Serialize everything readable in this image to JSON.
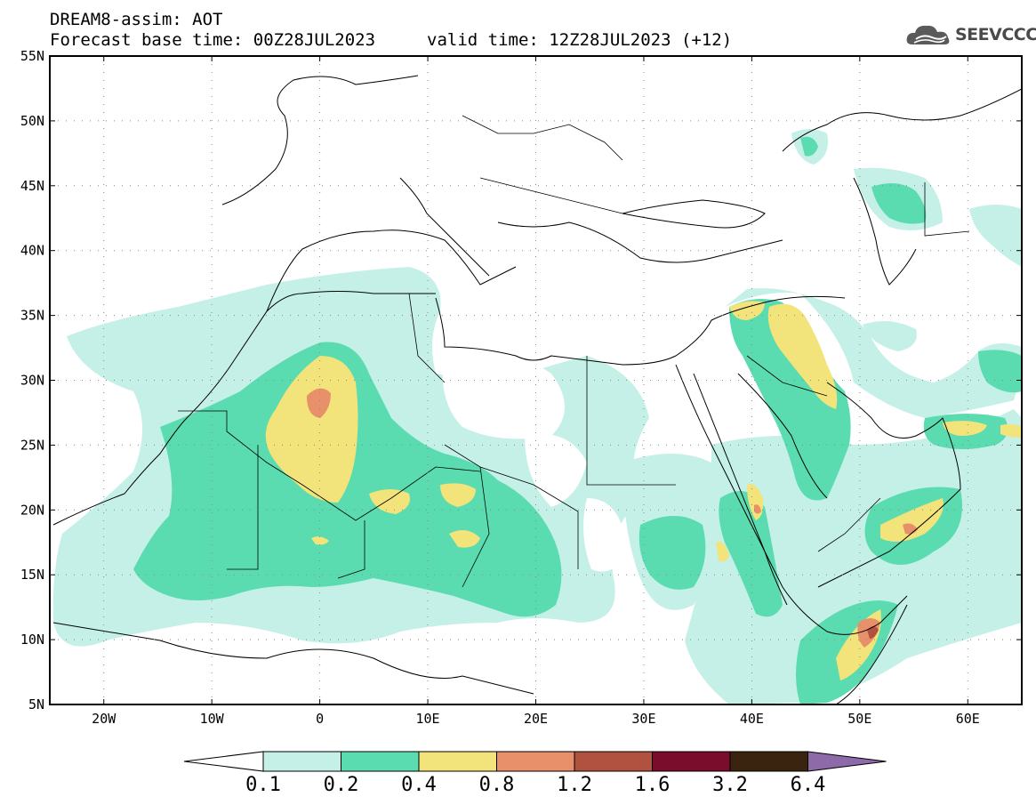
{
  "header": {
    "line1": "DREAM8-assim: AOT",
    "line2": "Forecast base time: 00Z28JUL2023",
    "line3": "valid time: 12Z28JUL2023 (+12)",
    "logo_text": "SEEVCCC",
    "logo_icon": "cloud-icon"
  },
  "map": {
    "lon_range": [
      -25,
      65
    ],
    "lat_range": [
      5,
      55
    ],
    "lat_labels": [
      "55N",
      "50N",
      "45N",
      "40N",
      "35N",
      "30N",
      "25N",
      "20N",
      "15N",
      "10N",
      "5N"
    ],
    "lat_values": [
      55,
      50,
      45,
      40,
      35,
      30,
      25,
      20,
      15,
      10,
      5
    ],
    "lon_labels": [
      "20W",
      "10W",
      "0",
      "10E",
      "20E",
      "30E",
      "40E",
      "50E",
      "60E"
    ],
    "lon_values": [
      -20,
      -10,
      0,
      10,
      20,
      30,
      40,
      50,
      60
    ]
  },
  "colorbar": {
    "labels": [
      "0.1",
      "0.2",
      "0.4",
      "0.8",
      "1.2",
      "1.6",
      "3.2",
      "6.4"
    ],
    "colors": [
      "#ffffff",
      "#c5f0e8",
      "#5bdcb0",
      "#f2e37a",
      "#e8906a",
      "#b0523f",
      "#7a0c2c",
      "#3a2410",
      "#8e6aa8"
    ]
  },
  "colors": {
    "c1": "#c5f0e8",
    "c2": "#5bdcb0",
    "c3": "#f2e37a",
    "c4": "#e8906a",
    "c5": "#b0523f"
  }
}
